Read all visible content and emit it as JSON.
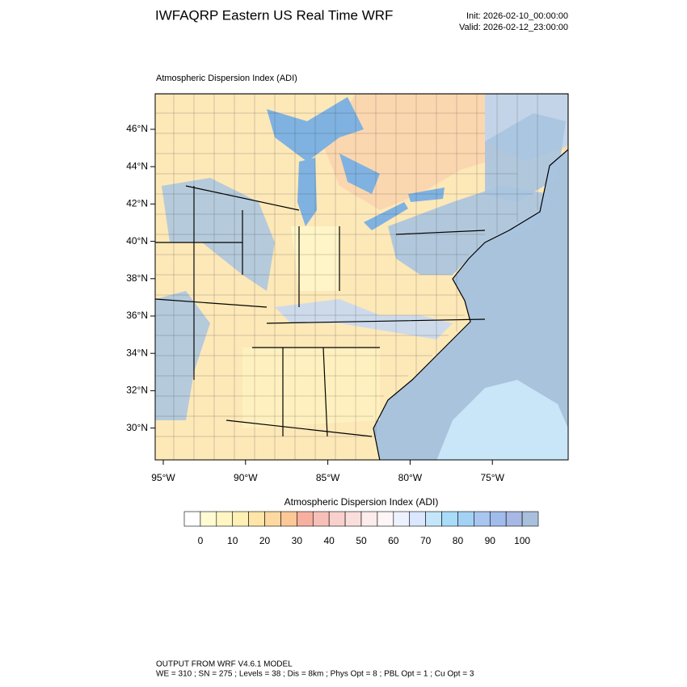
{
  "header": {
    "title": "IWFAQRP Eastern US Real Time WRF",
    "init": "Init: 2026-02-10_00:00:00",
    "valid": "Valid: 2026-02-12_23:00:00"
  },
  "map": {
    "title": "Atmospheric Dispersion Index   (ADI)",
    "lat_labels": [
      "46°N",
      "44°N",
      "42°N",
      "40°N",
      "38°N",
      "36°N",
      "34°N",
      "32°N",
      "30°N"
    ],
    "lon_labels": [
      "95°W",
      "90°W",
      "85°W",
      "80°W",
      "75°W"
    ]
  },
  "colorbar": {
    "title": "Atmospheric Dispersion Index  (ADI)",
    "ticks": [
      0,
      10,
      20,
      30,
      40,
      50,
      60,
      70,
      80,
      90,
      100
    ],
    "colors": [
      "#ffffff",
      "#fffcd4",
      "#fff6c4",
      "#fff0b4",
      "#ffe6a8",
      "#fdd8a0",
      "#fbc896",
      "#f7b0a0",
      "#f6c0b8",
      "#f8d0cc",
      "#fadedc",
      "#fcecec",
      "#fdf6f6",
      "#eef2ff",
      "#dbe6ff",
      "#c4e6fa",
      "#a8dcf8",
      "#a4d2f4",
      "#a8c6f0",
      "#a0bcec",
      "#a8b8e4",
      "#a8c0dc"
    ]
  },
  "footer": {
    "line1": "OUTPUT FROM WRF V4.6.1 MODEL",
    "line2": "WE = 310 ; SN = 275 ; Levels = 38 ; Dis = 8km ; Phys Opt = 8 ; PBL Opt = 1 ; Cu Opt = 3"
  }
}
